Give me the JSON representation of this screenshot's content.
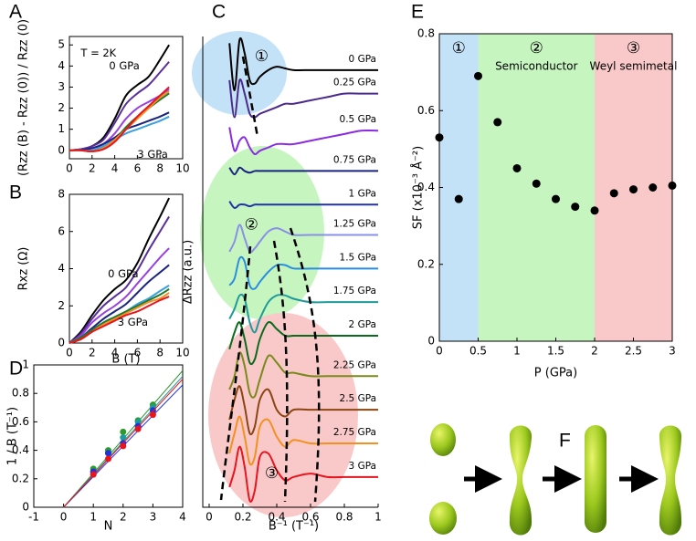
{
  "chart_data": [
    {
      "type": "line",
      "panel": "A",
      "ylabel": "(Rzz (B) - Rzz (0)) / Rzz (0)",
      "x": [
        0,
        1,
        2,
        3,
        4,
        5,
        6,
        7,
        8,
        8.8
      ],
      "series": [
        {
          "color": "#000000",
          "values": [
            0,
            0.05,
            0.2,
            0.6,
            1.5,
            2.6,
            3.1,
            3.5,
            4.3,
            5.0
          ]
        },
        {
          "color": "#5a2d9c",
          "values": [
            0,
            0.05,
            0.2,
            0.5,
            1.3,
            2.2,
            2.7,
            3.1,
            3.7,
            4.2
          ]
        },
        {
          "color": "#9b3fe0",
          "values": [
            0,
            0.03,
            0.1,
            0.3,
            0.8,
            1.5,
            2.0,
            2.3,
            2.6,
            2.9
          ]
        },
        {
          "color": "#1a237e",
          "values": [
            0,
            0.02,
            0.1,
            0.3,
            0.6,
            1.0,
            1.2,
            1.4,
            1.6,
            1.8
          ]
        },
        {
          "color": "#3aa0e0",
          "values": [
            0,
            0,
            0,
            0.2,
            0.5,
            0.8,
            1.0,
            1.2,
            1.4,
            1.6
          ]
        },
        {
          "color": "#1e7a2a",
          "values": [
            0,
            0,
            -0.05,
            0.1,
            0.5,
            1.1,
            1.6,
            2.0,
            2.4,
            2.7
          ]
        },
        {
          "color": "#f39020",
          "values": [
            0,
            0,
            -0.05,
            0.1,
            0.5,
            1.0,
            1.5,
            2.0,
            2.5,
            2.8
          ]
        },
        {
          "color": "#e8141e",
          "values": [
            0,
            0,
            -0.05,
            0.05,
            0.4,
            1.0,
            1.6,
            2.1,
            2.6,
            3.0
          ]
        }
      ],
      "xlim": [
        0,
        10
      ],
      "xticks": [
        0,
        2,
        4,
        6,
        8,
        10
      ],
      "ylim": [
        -0.4,
        5.4
      ],
      "yticks": [
        0,
        1,
        2,
        3,
        4,
        5
      ],
      "annotations": [
        {
          "text": "T = 2K",
          "color": "#000000"
        },
        {
          "text": "0 GPa",
          "color": "#000000"
        },
        {
          "text": "3 GPa",
          "color": "#e8141e"
        }
      ]
    },
    {
      "type": "line",
      "panel": "B",
      "xlabel": "B (T)",
      "ylabel": "Rxz (Ω)",
      "x": [
        0,
        1,
        2,
        3,
        4,
        5,
        6,
        7,
        8,
        8.8
      ],
      "series": [
        {
          "color": "#000000",
          "values": [
            0,
            0.6,
            1.5,
            2.3,
            2.9,
            3.4,
            4.3,
            5.6,
            6.8,
            7.8
          ]
        },
        {
          "color": "#5a2d9c",
          "values": [
            0,
            0.5,
            1.3,
            2.0,
            2.5,
            3.0,
            3.9,
            5.0,
            6.0,
            6.8
          ]
        },
        {
          "color": "#9b3fe0",
          "values": [
            0,
            0.4,
            1.1,
            1.6,
            2.0,
            2.5,
            3.2,
            3.9,
            4.6,
            5.1
          ]
        },
        {
          "color": "#1a237e",
          "values": [
            0,
            0.3,
            0.8,
            1.3,
            1.7,
            2.1,
            2.7,
            3.3,
            3.8,
            4.2
          ]
        },
        {
          "color": "#3aa0e0",
          "values": [
            0,
            0.3,
            0.7,
            1.1,
            1.4,
            1.7,
            2.1,
            2.4,
            2.8,
            3.1
          ]
        },
        {
          "color": "#1e7a2a",
          "values": [
            0,
            0.3,
            0.7,
            1.1,
            1.4,
            1.7,
            2.0,
            2.3,
            2.6,
            2.9
          ]
        },
        {
          "color": "#f39020",
          "values": [
            0,
            0.2,
            0.6,
            1.0,
            1.3,
            1.6,
            1.9,
            2.2,
            2.4,
            2.7
          ]
        },
        {
          "color": "#e8141e",
          "values": [
            0,
            0.2,
            0.6,
            0.9,
            1.2,
            1.5,
            1.7,
            2.0,
            2.3,
            2.5
          ]
        }
      ],
      "xlim": [
        0,
        10
      ],
      "xticks": [
        0,
        2,
        4,
        6,
        8,
        10
      ],
      "ylim": [
        0,
        8
      ],
      "yticks": [
        0,
        2,
        4,
        6,
        8
      ],
      "annotations": [
        {
          "text": "0 GPa",
          "color": "#000000"
        },
        {
          "text": "3 GPa",
          "color": "#e8141e"
        }
      ]
    },
    {
      "type": "line",
      "panel": "C",
      "xlabel": "B⁻¹ (T⁻¹)",
      "ylabel": "ΔRzz (a.u.)",
      "x": [
        0.12,
        0.15,
        0.18,
        0.21,
        0.24,
        0.27,
        0.3,
        0.35,
        0.4,
        0.45,
        0.5,
        0.6,
        0.7,
        0.8,
        0.9,
        1.0
      ],
      "series": [
        {
          "name": "0 GPa",
          "color": "#000000",
          "values": [
            13.8,
            12.4,
            13.9,
            13.5,
            12.7,
            12.6,
            12.8,
            13,
            13.1,
            13.05,
            13,
            13,
            13,
            13,
            13,
            13
          ]
        },
        {
          "name": "0.25 GPa",
          "color": "#4b2a8c",
          "values": [
            12.7,
            11.6,
            12.7,
            12.3,
            11.7,
            11.6,
            11.7,
            11.8,
            11.9,
            12,
            12,
            12.1,
            12.2,
            12.3,
            12.3,
            12.3
          ]
        },
        {
          "name": "0.5 GPa",
          "color": "#8a2be2",
          "values": [
            11.3,
            10.6,
            10.9,
            11.0,
            10.7,
            10.5,
            10.6,
            10.7,
            10.8,
            10.8,
            10.8,
            10.9,
            11.0,
            11.1,
            11.2,
            11.2
          ]
        },
        {
          "name": "0.75 GPa",
          "color": "#1a237e",
          "values": [
            10.1,
            9.9,
            10.1,
            10,
            9.95,
            10,
            10,
            10,
            10,
            10,
            10,
            10,
            10,
            10,
            10,
            10
          ]
        },
        {
          "name": "1 GPa",
          "color": "#2233aa",
          "values": [
            9.1,
            8.9,
            9.0,
            9,
            8.95,
            9,
            9,
            9,
            9,
            9,
            9,
            9,
            9,
            9,
            9,
            9
          ]
        },
        {
          "name": "1.25 GPa",
          "color": "#8890e8",
          "values": [
            7.6,
            7.9,
            8.4,
            8.0,
            7.6,
            7.7,
            7.9,
            8.2,
            8.3,
            8.2,
            8.1,
            8.1,
            8.1,
            8.1,
            8.1,
            8.1
          ]
        },
        {
          "name": "1.5 GPa",
          "color": "#2a8ee0",
          "values": [
            6.6,
            6.8,
            7.4,
            7.3,
            6.6,
            6.5,
            6.7,
            7.0,
            7.2,
            7.2,
            7.1,
            7.1,
            7.1,
            7.1,
            7.1,
            7.1
          ]
        },
        {
          "name": "1.75 GPa",
          "color": "#1f9a9a",
          "values": [
            5.6,
            5.9,
            6.3,
            6.2,
            5.5,
            5.2,
            5.6,
            6.1,
            6.3,
            6.3,
            6.2,
            6.1,
            6.1,
            6.1,
            6.1,
            6.1
          ]
        },
        {
          "name": "2 GPa",
          "color": "#0a6b1a",
          "values": [
            4.7,
            5.2,
            5.5,
            5.0,
            4.3,
            4.4,
            5.0,
            5.5,
            5.3,
            5.1,
            5.1,
            5.1,
            5.1,
            5.1,
            5.1,
            5.1
          ]
        },
        {
          "name": "2.25 GPa",
          "color": "#7a8a1a",
          "values": [
            3.5,
            3.9,
            4.6,
            4.2,
            3.4,
            3.3,
            3.8,
            4.5,
            4.3,
            4.0,
            4.0,
            3.9,
            3.9,
            3.9,
            3.9,
            3.9
          ]
        },
        {
          "name": "2.5 GPa",
          "color": "#8b4513",
          "values": [
            2.6,
            3.2,
            3.6,
            3.0,
            2.2,
            2.4,
            3.2,
            3.5,
            2.9,
            2.7,
            2.9,
            2.9,
            2.9,
            2.9,
            2.9,
            2.9
          ]
        },
        {
          "name": "2.75 GPa",
          "color": "#f39020",
          "values": [
            1.6,
            2.2,
            2.7,
            2.1,
            1.3,
            1.5,
            2.4,
            2.6,
            2.1,
            1.8,
            2.0,
            1.9,
            1.9,
            1.9,
            1.9,
            1.9
          ]
        },
        {
          "name": "3 GPa",
          "color": "#e8141e",
          "values": [
            0.6,
            1.1,
            1.8,
            1.2,
            0.2,
            0.5,
            1.5,
            1.6,
            1.1,
            0.8,
            0.9,
            1.0,
            0.9,
            0.9,
            0.9,
            0.9
          ]
        }
      ],
      "xlim": [
        0,
        1
      ],
      "xticks": [
        0,
        0.2,
        0.4,
        0.6,
        0.8,
        1
      ],
      "ylim": [
        0,
        14
      ],
      "annotations": [
        {
          "text": "①",
          "color": "#000000"
        },
        {
          "text": "②",
          "color": "#000000"
        },
        {
          "text": "③",
          "color": "#000000"
        }
      ]
    },
    {
      "type": "scatter",
      "panel": "D",
      "xlabel": "N",
      "ylabel": "1 / B (T⁻¹)",
      "series": [
        {
          "color": "#2e9a2e",
          "x": [
            1,
            1.5,
            2,
            2.5,
            3
          ],
          "values": [
            0.27,
            0.4,
            0.53,
            0.61,
            0.72
          ],
          "line": {
            "x": [
              0,
              4
            ],
            "values": [
              0,
              0.96
            ]
          }
        },
        {
          "color": "#1f9a9a",
          "x": [
            1,
            1.5,
            2,
            2.5,
            3
          ],
          "values": [
            0.25,
            0.38,
            0.49,
            0.6,
            0.7
          ],
          "line": {
            "x": [
              0,
              4
            ],
            "values": [
              0,
              0.92
            ]
          }
        },
        {
          "color": "#2233dd",
          "x": [
            1,
            1.5,
            2,
            2.5,
            3
          ],
          "values": [
            0.25,
            0.38,
            0.45,
            0.57,
            0.68
          ],
          "line": {
            "x": [
              0,
              4
            ],
            "values": [
              0,
              0.86
            ]
          }
        },
        {
          "color": "#e8141e",
          "x": [
            1,
            1.5,
            2,
            2.5,
            3
          ],
          "values": [
            0.23,
            0.34,
            0.43,
            0.55,
            0.65
          ],
          "line": {
            "x": [
              0,
              4
            ],
            "values": [
              0,
              0.9
            ]
          }
        }
      ],
      "xlim": [
        -1,
        4
      ],
      "xticks": [
        -1,
        0,
        1,
        2,
        3,
        4
      ],
      "ylim": [
        0,
        1
      ],
      "yticks": [
        0,
        0.2,
        0.4,
        0.6,
        0.8,
        1
      ]
    },
    {
      "type": "scatter",
      "panel": "E",
      "xlabel": "P (GPa)",
      "ylabel": "SF (x10⁻³ Å⁻²)",
      "regions": [
        {
          "from": 0,
          "to": 0.5,
          "color": "#c3e2f7",
          "labels": [
            "①"
          ]
        },
        {
          "from": 0.5,
          "to": 2,
          "color": "#c6f5c0",
          "labels": [
            "②",
            "Semiconductor"
          ]
        },
        {
          "from": 2,
          "to": 3,
          "color": "#f9c9c9",
          "labels": [
            "③",
            "Weyl semimetal"
          ]
        }
      ],
      "series": [
        {
          "color": "#000000",
          "x": [
            0,
            0.25,
            0.5,
            0.75,
            1,
            1.25,
            1.5,
            1.75,
            2,
            2.25,
            2.5,
            2.75,
            3
          ],
          "values": [
            0.53,
            0.37,
            0.69,
            0.57,
            0.45,
            0.41,
            0.37,
            0.35,
            0.34,
            0.385,
            0.395,
            0.4,
            0.405
          ]
        }
      ],
      "xlim": [
        0,
        3
      ],
      "xticks": [
        0,
        0.5,
        1,
        1.5,
        2,
        2.5,
        3
      ],
      "ylim": [
        0,
        0.8
      ],
      "yticks": [
        0,
        0.2,
        0.4,
        0.6,
        0.8
      ]
    }
  ],
  "diagram": {
    "panel": "F"
  }
}
